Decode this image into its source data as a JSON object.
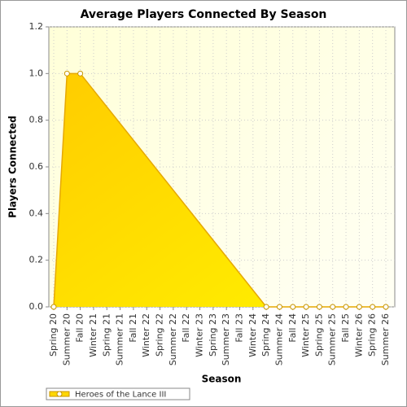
{
  "chart_data": {
    "type": "area",
    "title": "Average Players Connected By Season",
    "x_label": "Season",
    "y_label": "Players Connected",
    "categories": [
      "Spring 20",
      "Summer 20",
      "Fall 20",
      "Winter 21",
      "Spring 21",
      "Summer 21",
      "Fall 21",
      "Winter 22",
      "Spring 22",
      "Summer 22",
      "Fall 22",
      "Winter 23",
      "Spring 23",
      "Summer 23",
      "Fall 23",
      "Winter 24",
      "Spring 24",
      "Summer 24",
      "Fall 24",
      "Winter 25",
      "Spring 25",
      "Summer 25",
      "Fall 25",
      "Winter 26",
      "Spring 26",
      "Summer 26"
    ],
    "series": [
      {
        "name": "Heroes of the Lance III",
        "color": "#ffd700",
        "values": [
          0,
          1,
          1,
          null,
          null,
          null,
          null,
          null,
          null,
          null,
          null,
          null,
          null,
          null,
          null,
          null,
          0,
          0,
          0,
          0,
          0,
          0,
          0,
          0,
          0,
          0
        ]
      }
    ],
    "ylim": [
      0,
      1.2
    ],
    "yticks": [
      {
        "value": 0,
        "label": "0.0"
      },
      0.2,
      0.4,
      0.6,
      0.8,
      {
        "value": 1,
        "label": "1.0"
      },
      1.2
    ],
    "grid": true,
    "legend": "bottom-left"
  }
}
